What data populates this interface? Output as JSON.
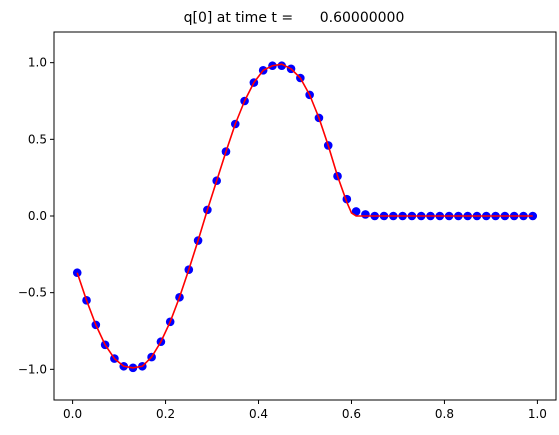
{
  "chart_data": {
    "type": "scatter",
    "title": "q[0] at time t =      0.60000000",
    "xlabel": "",
    "ylabel": "",
    "xlim": [
      -0.04,
      1.04
    ],
    "ylim": [
      -1.2,
      1.2
    ],
    "xticks": [
      0.0,
      0.2,
      0.4,
      0.6,
      0.8,
      1.0
    ],
    "xtick_labels": [
      "0.0",
      "0.2",
      "0.4",
      "0.6",
      "0.8",
      "1.0"
    ],
    "yticks": [
      -1.0,
      -0.5,
      0.0,
      0.5,
      1.0
    ],
    "ytick_labels": [
      "−1.0",
      "−0.5",
      "0.0",
      "0.5",
      "1.0"
    ],
    "grid": false,
    "colors": {
      "points": "#0000ff",
      "line": "#ff0000"
    },
    "series": [
      {
        "style": "markers",
        "color": "#0000ff",
        "x": [
          0.01,
          0.03,
          0.05,
          0.07,
          0.09,
          0.11,
          0.13,
          0.15,
          0.17,
          0.19,
          0.21,
          0.23,
          0.25,
          0.27,
          0.29,
          0.31,
          0.33,
          0.35,
          0.37,
          0.39,
          0.41,
          0.43,
          0.45,
          0.47,
          0.49,
          0.51,
          0.53,
          0.55,
          0.57,
          0.59,
          0.61,
          0.63,
          0.65,
          0.67,
          0.69,
          0.71,
          0.73,
          0.75,
          0.77,
          0.79,
          0.81,
          0.83,
          0.85,
          0.87,
          0.89,
          0.91,
          0.93,
          0.95,
          0.97,
          0.99
        ],
        "y": [
          -0.37,
          -0.55,
          -0.71,
          -0.84,
          -0.93,
          -0.98,
          -0.99,
          -0.98,
          -0.92,
          -0.82,
          -0.69,
          -0.53,
          -0.35,
          -0.16,
          0.04,
          0.23,
          0.42,
          0.6,
          0.75,
          0.87,
          0.95,
          0.98,
          0.98,
          0.96,
          0.9,
          0.79,
          0.64,
          0.46,
          0.26,
          0.11,
          0.03,
          0.01,
          0.0,
          0.0,
          0.0,
          0.0,
          0.0,
          0.0,
          0.0,
          0.0,
          0.0,
          0.0,
          0.0,
          0.0,
          0.0,
          0.0,
          0.0,
          0.0,
          0.0,
          0.0
        ]
      },
      {
        "style": "line",
        "color": "#ff0000",
        "x": [
          0.01,
          0.03,
          0.05,
          0.07,
          0.09,
          0.11,
          0.13,
          0.15,
          0.17,
          0.19,
          0.21,
          0.23,
          0.25,
          0.27,
          0.29,
          0.31,
          0.33,
          0.35,
          0.37,
          0.39,
          0.41,
          0.43,
          0.45,
          0.47,
          0.49,
          0.51,
          0.53,
          0.55,
          0.57,
          0.59,
          0.6,
          0.61,
          0.63,
          0.65,
          0.67,
          0.69,
          0.71,
          0.73,
          0.75,
          0.77,
          0.79,
          0.81,
          0.83,
          0.85,
          0.87,
          0.89,
          0.91,
          0.93,
          0.95,
          0.97,
          0.99
        ],
        "y": [
          -0.37,
          -0.55,
          -0.71,
          -0.84,
          -0.93,
          -0.98,
          -0.99,
          -0.98,
          -0.92,
          -0.82,
          -0.69,
          -0.53,
          -0.35,
          -0.16,
          0.04,
          0.23,
          0.42,
          0.6,
          0.75,
          0.87,
          0.95,
          0.98,
          0.99,
          0.96,
          0.9,
          0.79,
          0.64,
          0.46,
          0.26,
          0.09,
          0.02,
          0.0,
          0.0,
          0.0,
          0.0,
          0.0,
          0.0,
          0.0,
          0.0,
          0.0,
          0.0,
          0.0,
          0.0,
          0.0,
          0.0,
          0.0,
          0.0,
          0.0,
          0.0,
          0.0,
          0.0
        ]
      }
    ]
  }
}
